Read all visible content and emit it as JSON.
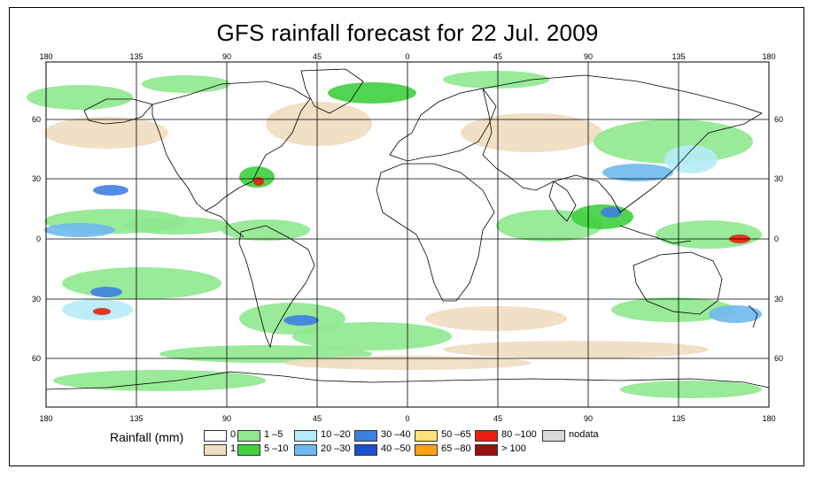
{
  "title": "GFS rainfall forecast for 22 Jul. 2009",
  "map": {
    "lon_ticks": [
      "180",
      "135",
      "90",
      "45",
      "0",
      "45",
      "90",
      "135",
      "180"
    ],
    "lat_ticks": [
      "60",
      "30",
      "0",
      "30",
      "60"
    ]
  },
  "legend": {
    "title": "Rainfall (mm)",
    "items": [
      {
        "label": "0",
        "color": "#ffffff"
      },
      {
        "label": "1",
        "color": "#f0dcc0"
      },
      {
        "label": "1 –5",
        "color": "#8ee88e"
      },
      {
        "label": "5 –10",
        "color": "#3fcf3f"
      },
      {
        "label": "10 –20",
        "color": "#b5ecf8"
      },
      {
        "label": "20 –30",
        "color": "#6fb8f0"
      },
      {
        "label": "30 –40",
        "color": "#3f7fe0"
      },
      {
        "label": "40 –50",
        "color": "#1d4fd0"
      },
      {
        "label": "50 –65",
        "color": "#ffe07a"
      },
      {
        "label": "65 –80",
        "color": "#ffa010"
      },
      {
        "label": "80 –100",
        "color": "#e82010"
      },
      {
        "label": "> 100",
        "color": "#9a1010"
      },
      {
        "label": "nodata",
        "color": "#d9d9d9"
      }
    ]
  }
}
